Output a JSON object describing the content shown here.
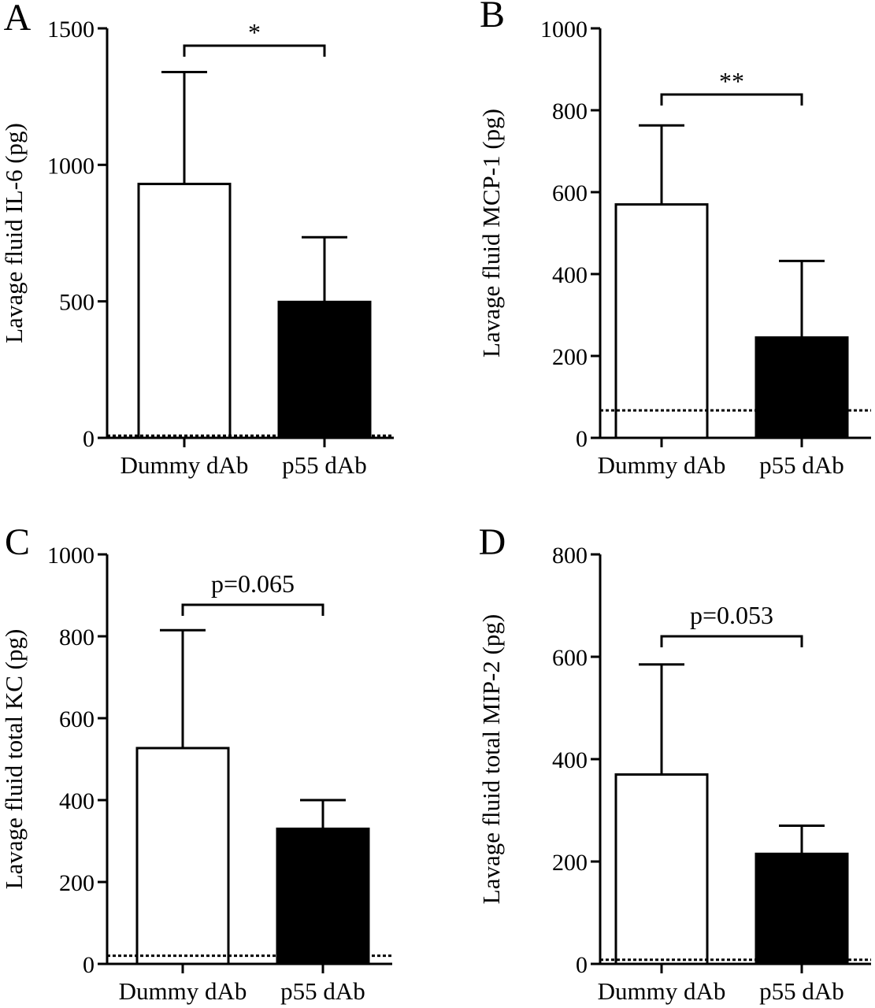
{
  "figure": {
    "panels": [
      "A",
      "B",
      "C",
      "D"
    ]
  },
  "chart_data": [
    {
      "type": "bar",
      "panel": "A",
      "ylabel": "Lavage fluid IL-6 (pg)",
      "ylim": [
        0,
        1500
      ],
      "yticks": [
        0,
        500,
        1000,
        1500
      ],
      "categories": [
        "Dummy dAb",
        "p55 dAb"
      ],
      "values": [
        930,
        498
      ],
      "error_upper": [
        1340,
        735
      ],
      "bar_fill": [
        "#ffffff",
        "#000000"
      ],
      "detection_limit": 8,
      "significance": "*",
      "grid": false
    },
    {
      "type": "bar",
      "panel": "B",
      "ylabel": "Lavage fluid MCP-1 (pg)",
      "ylim": [
        0,
        1000
      ],
      "yticks": [
        0,
        200,
        400,
        600,
        800,
        1000
      ],
      "categories": [
        "Dummy dAb",
        "p55 dAb"
      ],
      "values": [
        570,
        245
      ],
      "error_upper": [
        763,
        432
      ],
      "bar_fill": [
        "#ffffff",
        "#000000"
      ],
      "detection_limit": 67,
      "significance": "**",
      "grid": false
    },
    {
      "type": "bar",
      "panel": "C",
      "ylabel": "Lavage fluid total KC (pg)",
      "ylim": [
        0,
        1000
      ],
      "yticks": [
        0,
        200,
        400,
        600,
        800,
        1000
      ],
      "categories": [
        "Dummy dAb",
        "p55 dAb"
      ],
      "values": [
        527,
        330
      ],
      "error_upper": [
        815,
        400
      ],
      "bar_fill": [
        "#ffffff",
        "#000000"
      ],
      "detection_limit": 20,
      "significance": "p=0.065",
      "grid": false
    },
    {
      "type": "bar",
      "panel": "D",
      "ylabel": "Lavage fluid total MIP-2 (pg)",
      "ylim": [
        0,
        800
      ],
      "yticks": [
        0,
        200,
        400,
        600,
        800
      ],
      "categories": [
        "Dummy dAb",
        "p55 dAb"
      ],
      "values": [
        370,
        215
      ],
      "error_upper": [
        585,
        270
      ],
      "bar_fill": [
        "#ffffff",
        "#000000"
      ],
      "detection_limit": 8,
      "significance": "p=0.053",
      "grid": false
    }
  ]
}
